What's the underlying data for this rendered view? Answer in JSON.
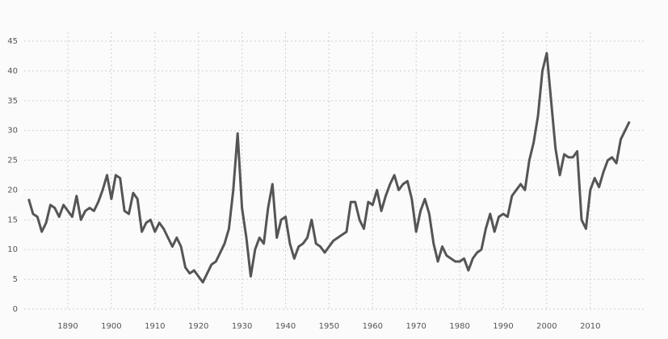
{
  "chart_data": {
    "type": "line",
    "x": [
      1881,
      1882,
      1883,
      1884,
      1885,
      1886,
      1887,
      1888,
      1889,
      1890,
      1891,
      1892,
      1893,
      1894,
      1895,
      1896,
      1897,
      1898,
      1899,
      1900,
      1901,
      1902,
      1903,
      1904,
      1905,
      1906,
      1907,
      1908,
      1909,
      1910,
      1911,
      1912,
      1913,
      1914,
      1915,
      1916,
      1917,
      1918,
      1919,
      1920,
      1921,
      1922,
      1923,
      1924,
      1925,
      1926,
      1927,
      1928,
      1929,
      1930,
      1931,
      1932,
      1933,
      1934,
      1935,
      1936,
      1937,
      1938,
      1939,
      1940,
      1941,
      1942,
      1943,
      1944,
      1945,
      1946,
      1947,
      1948,
      1949,
      1950,
      1951,
      1952,
      1953,
      1954,
      1955,
      1956,
      1957,
      1958,
      1959,
      1960,
      1961,
      1962,
      1963,
      1964,
      1965,
      1966,
      1967,
      1968,
      1969,
      1970,
      1971,
      1972,
      1973,
      1974,
      1975,
      1976,
      1977,
      1978,
      1979,
      1980,
      1981,
      1982,
      1983,
      1984,
      1985,
      1986,
      1987,
      1988,
      1989,
      1990,
      1991,
      1992,
      1993,
      1994,
      1995,
      1996,
      1997,
      1998,
      1999,
      2000,
      2001,
      2002,
      2003,
      2004,
      2005,
      2006,
      2007,
      2008,
      2009,
      2010,
      2011,
      2012,
      2013,
      2014,
      2015,
      2016,
      2017,
      2018,
      2019
    ],
    "series": [
      {
        "color": "#555555",
        "values": [
          18.5,
          16,
          15.5,
          13,
          14.5,
          17.5,
          17,
          15.5,
          17.5,
          16.5,
          15.5,
          19,
          15,
          16.5,
          17,
          16.5,
          18,
          20,
          22.5,
          18.5,
          22.5,
          22,
          16.5,
          16,
          19.5,
          18.5,
          13,
          14.5,
          15,
          13,
          14.5,
          13.5,
          12,
          10.5,
          12,
          10.5,
          7,
          6,
          6.5,
          5.5,
          4.5,
          6,
          7.5,
          8,
          9.5,
          11,
          13.5,
          20,
          29.5,
          17,
          12,
          5.5,
          10,
          12,
          11,
          17,
          21,
          12,
          15,
          15.5,
          11,
          8.5,
          10.5,
          11,
          12,
          15,
          11,
          10.5,
          9.5,
          10.5,
          11.5,
          12,
          12.5,
          13,
          18,
          18,
          15,
          13.5,
          18,
          17.5,
          20,
          16.5,
          19,
          21,
          22.5,
          20,
          21,
          21.5,
          18.5,
          13,
          16.5,
          18.5,
          16,
          11,
          8,
          10.5,
          9,
          8.5,
          8,
          8,
          8.5,
          6.5,
          8.5,
          9.5,
          10,
          13.5,
          16,
          13,
          15.5,
          16,
          15.5,
          19,
          20,
          21,
          20,
          25,
          28,
          32.5,
          40,
          43,
          35,
          27,
          22.5,
          26,
          25.5,
          25.5,
          26.5,
          15,
          13.5,
          20,
          22,
          20.5,
          23,
          25,
          25.5,
          24.5,
          28.5,
          30,
          31.5
        ]
      }
    ],
    "xlim": [
      1881,
      2019
    ],
    "xticks": [
      1890,
      1900,
      1910,
      1920,
      1930,
      1940,
      1950,
      1960,
      1970,
      1980,
      1990,
      2000,
      2010
    ],
    "ylim": [
      0,
      45
    ],
    "yticks": [
      0,
      5,
      10,
      15,
      20,
      25,
      30,
      35,
      40,
      45
    ],
    "grid": true
  }
}
